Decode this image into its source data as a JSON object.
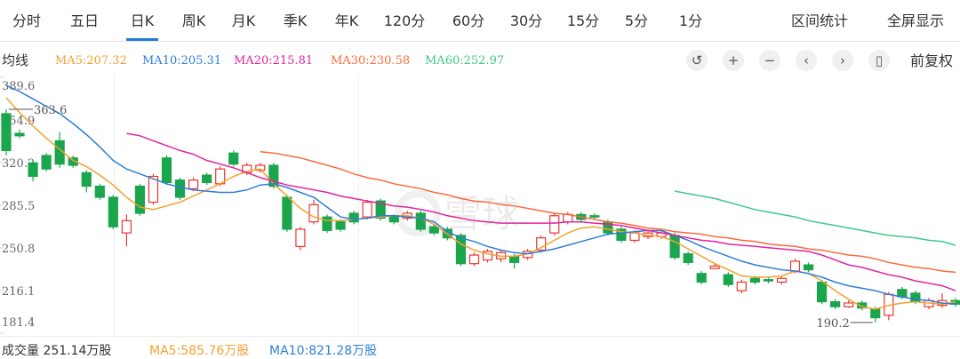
{
  "toolbar": {
    "tabs": [
      "分时",
      "五日",
      "日K",
      "周K",
      "月K",
      "季K",
      "年K",
      "120分",
      "60分",
      "30分",
      "15分",
      "5分",
      "1分"
    ],
    "active_tab": 2,
    "actions": [
      "区间统计",
      "全屏显示"
    ]
  },
  "ma_title": "均线",
  "adjust": "前复权",
  "watermark": "雪球",
  "volume": {
    "label": "成交量 251.14万股",
    "ma5": "MA5:585.76万股",
    "ma10": "MA10:821.28万股"
  },
  "chart_data": {
    "type": "candlestick",
    "ylim": [
      181.4,
      389.6
    ],
    "yticks": [
      389.6,
      354.9,
      320.2,
      285.5,
      250.8,
      216.1,
      181.4
    ],
    "up_color": "#e8382f",
    "down_color": "#1ba54c",
    "high_label": 363.6,
    "low_label": 190.2,
    "open": [
      360,
      344,
      320,
      326,
      338,
      324,
      312,
      301,
      292,
      263,
      301,
      288,
      324,
      306,
      299,
      310,
      303,
      328,
      312,
      314,
      318,
      292,
      252,
      272,
      276,
      272,
      279,
      276,
      289,
      276,
      275,
      279,
      268,
      266,
      261,
      238,
      241,
      242,
      244,
      243,
      249,
      263,
      272,
      278,
      277,
      272,
      266,
      257,
      260,
      260,
      261,
      246,
      230,
      234,
      229,
      216,
      226,
      225,
      223,
      232,
      237,
      223,
      207,
      203,
      206,
      201,
      196,
      217,
      214,
      203,
      204,
      208
    ],
    "high": [
      363.6,
      347,
      322,
      328,
      345,
      326,
      314,
      303,
      294,
      278,
      303,
      311,
      326,
      308,
      308,
      312,
      317,
      330,
      320,
      320,
      320,
      294,
      268,
      290,
      278,
      274,
      281,
      290,
      291,
      278,
      281,
      281,
      270,
      268,
      263,
      247,
      250,
      249,
      246,
      250,
      261,
      279,
      280,
      280,
      279,
      274,
      268,
      265,
      265,
      265,
      263,
      248,
      232,
      238,
      231,
      225,
      228,
      227,
      228,
      242,
      239,
      225,
      209,
      208,
      208,
      203,
      215,
      219,
      216,
      210,
      214,
      210
    ],
    "low": [
      326,
      340,
      305,
      313,
      316,
      316,
      296,
      290,
      266,
      252,
      277,
      286,
      302,
      290,
      297,
      302,
      301,
      317,
      310,
      312,
      299,
      264,
      249,
      270,
      263,
      264,
      270,
      274,
      273,
      270,
      273,
      264,
      261,
      257,
      236,
      236,
      239,
      239,
      234,
      241,
      247,
      261,
      270,
      272,
      274,
      261,
      255,
      255,
      258,
      258,
      241,
      237,
      221,
      234,
      219,
      214,
      221,
      222,
      221,
      230,
      231,
      205,
      201,
      202,
      200,
      190.2,
      192,
      209,
      205,
      201,
      202,
      203
    ],
    "close": [
      330,
      342,
      309,
      315,
      319,
      318,
      301,
      292,
      268,
      273,
      279,
      309,
      304,
      292,
      306,
      304,
      315,
      319,
      318,
      318,
      301,
      266,
      266,
      286,
      265,
      266,
      272,
      288,
      275,
      272,
      279,
      266,
      263,
      259,
      238,
      245,
      248,
      247,
      239,
      248,
      259,
      277,
      278,
      274,
      276,
      263,
      257,
      263,
      263,
      263,
      243,
      239,
      223,
      236,
      221,
      223,
      223,
      224,
      226,
      240,
      233,
      207,
      203,
      206,
      202,
      194,
      213,
      211,
      207,
      208,
      208,
      205
    ],
    "series": [
      {
        "name": "MA5:207.32",
        "color": "#f5a030",
        "values": [
          373,
          361,
          350,
          340,
          331,
          322,
          317,
          310,
          302,
          292,
          284,
          282,
          285,
          288,
          293,
          298,
          303,
          309,
          313,
          315,
          303,
          293,
          283,
          276,
          273,
          273,
          274,
          275,
          276,
          277,
          277,
          275,
          270,
          262,
          254,
          249,
          246,
          244,
          244,
          246,
          251,
          257,
          263,
          267,
          268,
          266,
          264,
          263,
          261,
          260,
          256,
          250,
          244,
          238,
          233,
          228,
          227,
          227,
          228,
          232,
          230,
          224,
          216,
          209,
          203,
          201,
          204,
          206,
          207,
          206,
          205,
          207
        ]
      },
      {
        "name": "MA10:205.31",
        "color": "#2f7ed8",
        "values": [
          383,
          378,
          372,
          366,
          360,
          352,
          343,
          333,
          322,
          315,
          311,
          307,
          303,
          300,
          298,
          297,
          296,
          296,
          298,
          302,
          303,
          300,
          296,
          292,
          284,
          276,
          274,
          275,
          277,
          277,
          276,
          275,
          272,
          264,
          259,
          256,
          252,
          249,
          247,
          246,
          248,
          250,
          253,
          256,
          259,
          262,
          263,
          264,
          265,
          265,
          261,
          257,
          252,
          248,
          244,
          240,
          237,
          235,
          233,
          232,
          230,
          227,
          223,
          220,
          218,
          216,
          213,
          211,
          209,
          208,
          206,
          205
        ]
      },
      {
        "name": "MA20:215.81",
        "color": "#e0249f",
        "values": [
          null,
          null,
          null,
          null,
          null,
          null,
          null,
          null,
          null,
          344,
          342,
          338,
          334,
          330,
          327,
          322,
          319,
          316,
          312,
          308,
          305,
          302,
          300,
          298,
          296,
          293,
          291,
          289,
          287,
          285,
          284,
          282,
          280,
          277,
          275,
          273,
          272,
          271,
          271,
          271,
          271,
          271,
          272,
          272,
          271,
          270,
          269,
          267,
          265,
          263,
          261,
          259,
          257,
          256,
          254,
          253,
          252,
          251,
          250,
          249,
          248,
          245,
          241,
          237,
          235,
          232,
          229,
          227,
          224,
          222,
          220,
          216
        ]
      },
      {
        "name": "MA30:230.58",
        "color": "#fb6a3c",
        "values": [
          null,
          null,
          null,
          null,
          null,
          null,
          null,
          null,
          null,
          null,
          null,
          null,
          null,
          null,
          null,
          null,
          null,
          null,
          null,
          329,
          328,
          326,
          324,
          321,
          318,
          315,
          311,
          308,
          306,
          303,
          301,
          299,
          296,
          294,
          291,
          289,
          288,
          286,
          285,
          283,
          281,
          279,
          278,
          276,
          274,
          272,
          271,
          269,
          267,
          266,
          264,
          263,
          262,
          260,
          259,
          257,
          256,
          254,
          253,
          252,
          250,
          249,
          247,
          245,
          244,
          242,
          239,
          237,
          235,
          234,
          232,
          231
        ]
      },
      {
        "name": "MA60:252.97",
        "color": "#3ccb86",
        "values": [
          null,
          null,
          null,
          null,
          null,
          null,
          null,
          null,
          null,
          null,
          null,
          null,
          null,
          null,
          null,
          null,
          null,
          null,
          null,
          null,
          null,
          null,
          null,
          null,
          null,
          null,
          null,
          null,
          null,
          null,
          null,
          null,
          null,
          null,
          null,
          null,
          null,
          null,
          null,
          null,
          null,
          null,
          null,
          null,
          null,
          null,
          null,
          null,
          null,
          null,
          297,
          295,
          293,
          291,
          288,
          285,
          282,
          280,
          278,
          276,
          273,
          271,
          269,
          267,
          265,
          263,
          261,
          260,
          259,
          257,
          256,
          253
        ]
      }
    ]
  }
}
